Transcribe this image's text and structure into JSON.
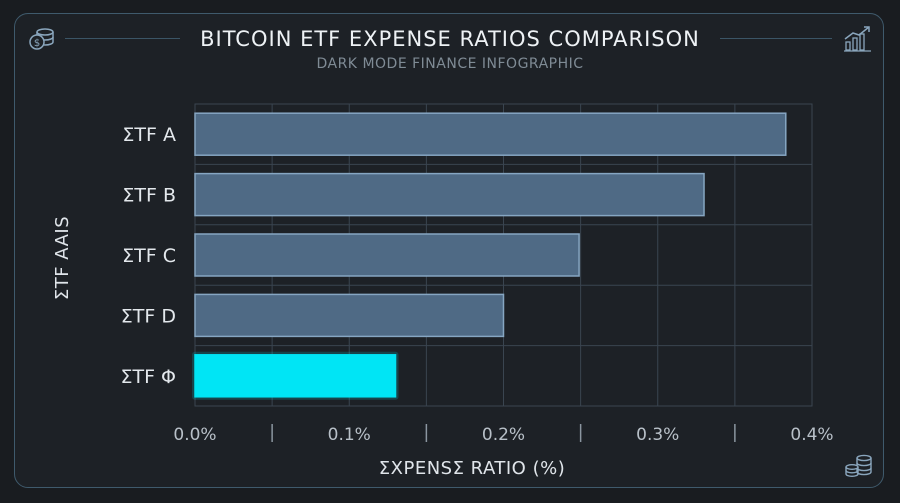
{
  "header": {
    "title": "BITCOIN ETF EXPENSE RATIOS COMPARISON",
    "subtitle": "DARK MODE FINANCE INFOGRAPHIC"
  },
  "icons": {
    "top_left": "coins-dollar-icon",
    "top_right": "growth-chart-icon",
    "bottom_right": "coin-stack-icon"
  },
  "colors": {
    "bar": "#4f6a85",
    "bar_border": "#86a6c2",
    "highlight": "#00e5f5",
    "grid": "#3a4550"
  },
  "chart_data": {
    "type": "bar",
    "orientation": "horizontal",
    "title": "BITCOIN ETF EXPENSE RATIOS COMPARISON",
    "subtitle": "DARK MODE FINANCE INFOGRAPHIC",
    "categories": [
      "ΣTF A",
      "ΣTF B",
      "ΣTF C",
      "ΣTF D",
      "ΣTF Φ"
    ],
    "values": [
      0.383,
      0.33,
      0.249,
      0.2,
      0.13
    ],
    "highlight_index": 4,
    "xlabel": "ΣXPENSΣ RATIO (%)",
    "ylabel": "ΣTF AAIS",
    "xlim": [
      0,
      0.4
    ],
    "xticks": [
      "0.0%",
      "0.1%",
      "0.2%",
      "0.3%",
      "0.4%"
    ],
    "grid": true,
    "legend": "none"
  }
}
